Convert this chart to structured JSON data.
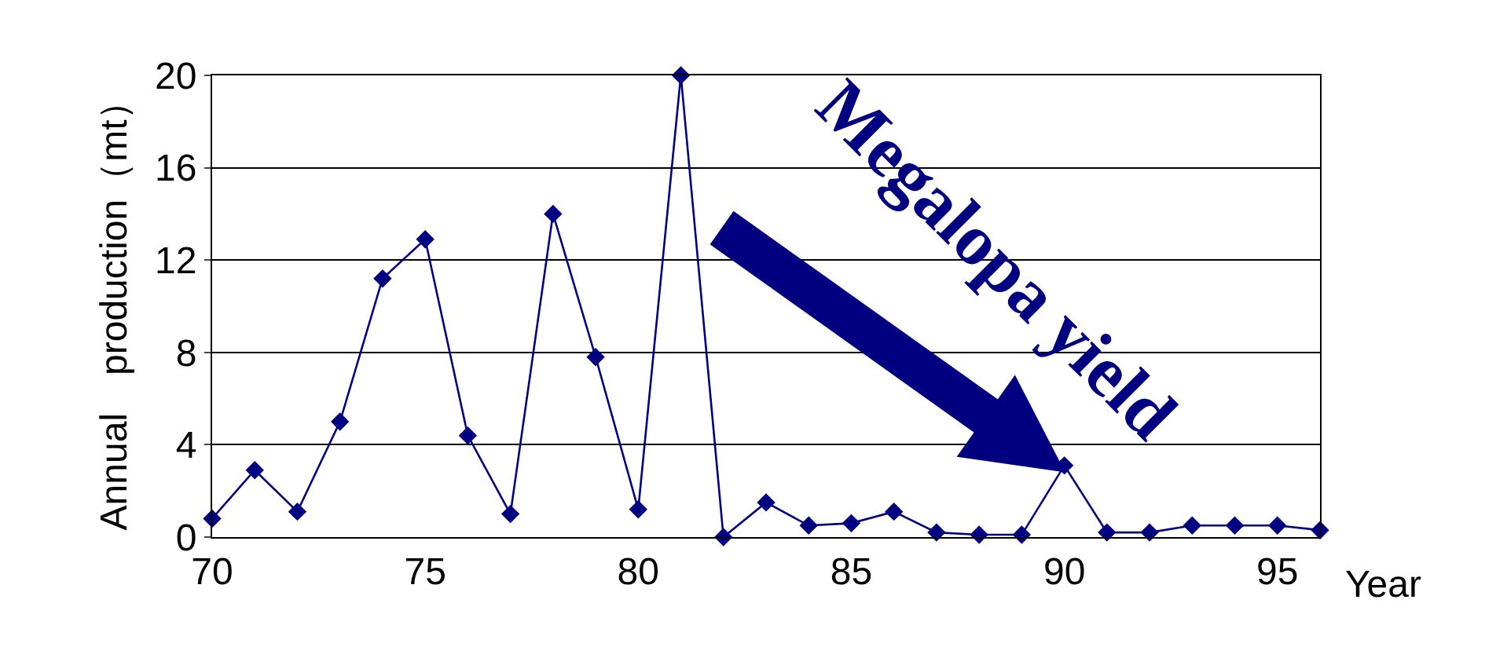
{
  "chart_data": {
    "type": "line",
    "xlabel": "Year",
    "ylabel": "Annual　production（mt）",
    "x": [
      70,
      71,
      72,
      73,
      74,
      75,
      76,
      77,
      78,
      79,
      80,
      81,
      82,
      83,
      84,
      85,
      86,
      87,
      88,
      89,
      90,
      91,
      92,
      93,
      94,
      95,
      96
    ],
    "series": [
      {
        "color": "#000080",
        "values": [
          0.8,
          2.9,
          1.1,
          5.0,
          11.2,
          12.9,
          4.4,
          1.0,
          14.0,
          7.8,
          1.2,
          20,
          0,
          1.5,
          0.5,
          0.6,
          1.1,
          0.2,
          0.1,
          0.1,
          3.1,
          0.2,
          0.2,
          0.5,
          0.5,
          0.5,
          0.3
        ]
      }
    ],
    "xlim": [
      70,
      96
    ],
    "xticks": [
      70,
      75,
      80,
      85,
      90,
      95
    ],
    "ylim": [
      0,
      20
    ],
    "yticks": [
      0,
      4,
      8,
      12,
      16,
      20
    ],
    "grid": "y",
    "marker": "diamond",
    "line_style": "solid",
    "annotations": [
      "Megalopa yield"
    ]
  }
}
